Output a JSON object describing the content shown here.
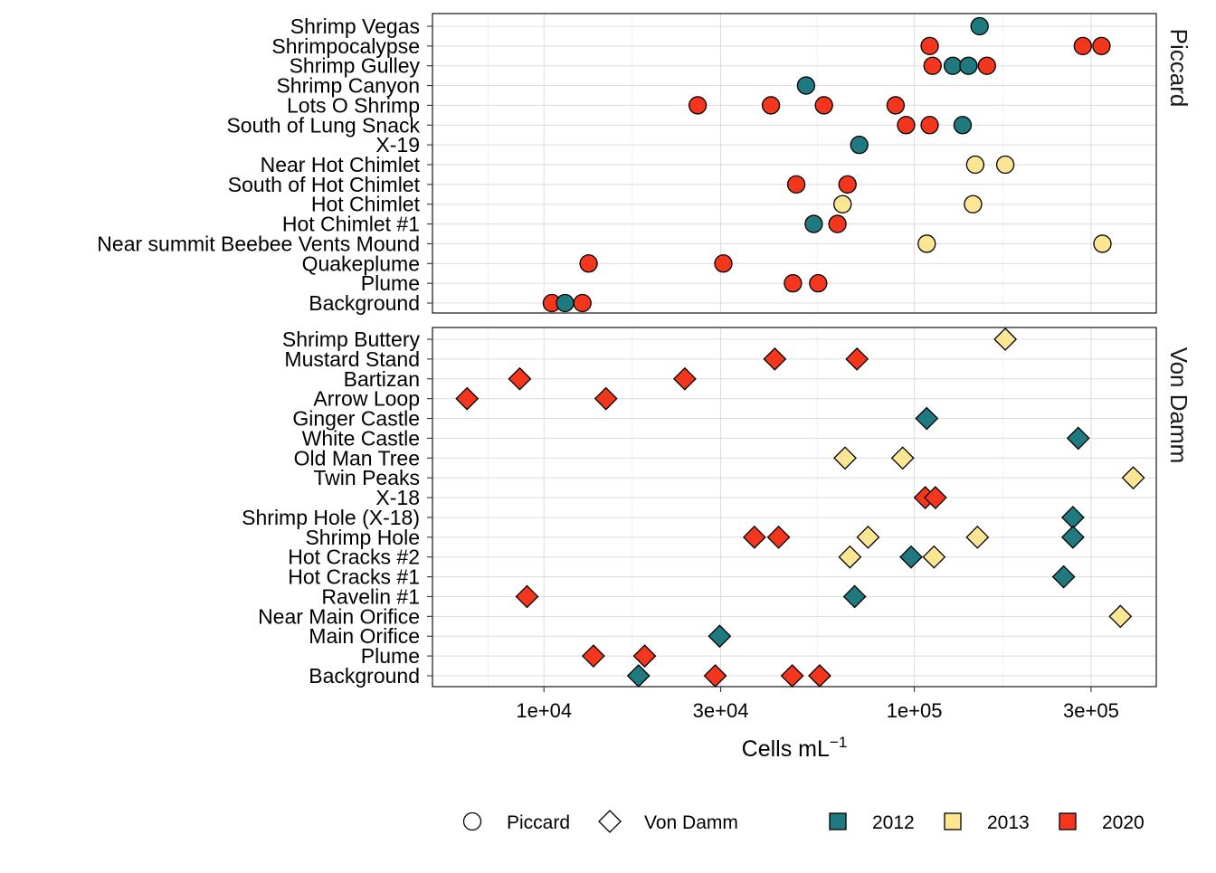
{
  "chart_data": {
    "type": "scatter",
    "x_scale": "log10",
    "xlim": [
      5000,
      450000
    ],
    "xlabel_main": "Cells  mL",
    "xlabel_sup": "−1",
    "x_ticks": [
      {
        "value": 10000,
        "label": "1e+04"
      },
      {
        "value": 30000,
        "label": "3e+04"
      },
      {
        "value": 100000,
        "label": "1e+05"
      },
      {
        "value": 300000,
        "label": "3e+05"
      }
    ],
    "grid": true,
    "legend_position": "bottom",
    "shape_legend": [
      {
        "name": "Piccard",
        "shape": "circle"
      },
      {
        "name": "Von Damm",
        "shape": "diamond"
      }
    ],
    "year_legend": [
      {
        "name": "2012",
        "color": "#1f7a80"
      },
      {
        "name": "2013",
        "color": "#fce694"
      },
      {
        "name": "2020",
        "color": "#f4361c"
      }
    ],
    "panels": [
      {
        "name": "Piccard",
        "shape": "circle",
        "sites": [
          "Shrimp Vegas",
          "Shrimpocalypse",
          "Shrimp Gulley",
          "Shrimp Canyon",
          "Lots O Shrimp",
          "South of Lung Snack",
          "X-19",
          "Near Hot Chimlet",
          "South of Hot Chimlet",
          "Hot Chimlet",
          "Hot Chimlet #1",
          "Near summit Beebee Vents Mound",
          "Quakeplume",
          "Plume",
          "Background"
        ],
        "points": [
          {
            "site": "Shrimp Vegas",
            "year": "2012",
            "value": 150000
          },
          {
            "site": "Shrimpocalypse",
            "year": "2020",
            "value": 110000
          },
          {
            "site": "Shrimpocalypse",
            "year": "2020",
            "value": 285000
          },
          {
            "site": "Shrimpocalypse",
            "year": "2020",
            "value": 320000
          },
          {
            "site": "Shrimp Gulley",
            "year": "2020",
            "value": 112000
          },
          {
            "site": "Shrimp Gulley",
            "year": "2012",
            "value": 127000
          },
          {
            "site": "Shrimp Gulley",
            "year": "2012",
            "value": 140000
          },
          {
            "site": "Shrimp Gulley",
            "year": "2020",
            "value": 157000
          },
          {
            "site": "Shrimp Canyon",
            "year": "2012",
            "value": 51000
          },
          {
            "site": "Lots O Shrimp",
            "year": "2020",
            "value": 26000
          },
          {
            "site": "Lots O Shrimp",
            "year": "2020",
            "value": 41000
          },
          {
            "site": "Lots O Shrimp",
            "year": "2020",
            "value": 57000
          },
          {
            "site": "Lots O Shrimp",
            "year": "2020",
            "value": 89000
          },
          {
            "site": "South of Lung Snack",
            "year": "2020",
            "value": 95000
          },
          {
            "site": "South of Lung Snack",
            "year": "2020",
            "value": 110000
          },
          {
            "site": "South of Lung Snack",
            "year": "2012",
            "value": 135000
          },
          {
            "site": "X-19",
            "year": "2012",
            "value": 71000
          },
          {
            "site": "Near Hot Chimlet",
            "year": "2013",
            "value": 146000
          },
          {
            "site": "Near Hot Chimlet",
            "year": "2013",
            "value": 176000
          },
          {
            "site": "South of Hot Chimlet",
            "year": "2020",
            "value": 48000
          },
          {
            "site": "South of Hot Chimlet",
            "year": "2020",
            "value": 66000
          },
          {
            "site": "Hot Chimlet",
            "year": "2013",
            "value": 64000
          },
          {
            "site": "Hot Chimlet",
            "year": "2013",
            "value": 144000
          },
          {
            "site": "Hot Chimlet #1",
            "year": "2012",
            "value": 53500
          },
          {
            "site": "Hot Chimlet #1",
            "year": "2020",
            "value": 62000
          },
          {
            "site": "Near summit Beebee Vents Mound",
            "year": "2013",
            "value": 108000
          },
          {
            "site": "Near summit Beebee Vents Mound",
            "year": "2013",
            "value": 322000
          },
          {
            "site": "Quakeplume",
            "year": "2020",
            "value": 13200
          },
          {
            "site": "Quakeplume",
            "year": "2020",
            "value": 30500
          },
          {
            "site": "Plume",
            "year": "2020",
            "value": 47000
          },
          {
            "site": "Plume",
            "year": "2020",
            "value": 55000
          },
          {
            "site": "Background",
            "year": "2020",
            "value": 10500
          },
          {
            "site": "Background",
            "year": "2012",
            "value": 11400
          },
          {
            "site": "Background",
            "year": "2020",
            "value": 12700
          }
        ]
      },
      {
        "name": "Von Damm",
        "shape": "diamond",
        "sites": [
          "Shrimp Buttery",
          "Mustard Stand",
          "Bartizan",
          "Arrow Loop",
          "Ginger Castle",
          "White Castle",
          "Old Man Tree",
          "Twin Peaks",
          "X-18",
          "Shrimp Hole (X-18)",
          "Shrimp Hole",
          "Hot Cracks #2",
          "Hot Cracks #1",
          "Ravelin #1",
          "Near Main Orifice",
          "Main Orifice",
          "Plume",
          "Background"
        ],
        "points": [
          {
            "site": "Shrimp Buttery",
            "year": "2013",
            "value": 176000
          },
          {
            "site": "Mustard Stand",
            "year": "2020",
            "value": 42000
          },
          {
            "site": "Mustard Stand",
            "year": "2020",
            "value": 70000
          },
          {
            "site": "Bartizan",
            "year": "2020",
            "value": 8600
          },
          {
            "site": "Bartizan",
            "year": "2020",
            "value": 24000
          },
          {
            "site": "Arrow Loop",
            "year": "2020",
            "value": 6200
          },
          {
            "site": "Arrow Loop",
            "year": "2020",
            "value": 14700
          },
          {
            "site": "Ginger Castle",
            "year": "2012",
            "value": 108000
          },
          {
            "site": "White Castle",
            "year": "2012",
            "value": 277000
          },
          {
            "site": "Old Man Tree",
            "year": "2013",
            "value": 65000
          },
          {
            "site": "Old Man Tree",
            "year": "2013",
            "value": 93000
          },
          {
            "site": "Twin Peaks",
            "year": "2013",
            "value": 390000
          },
          {
            "site": "X-18",
            "year": "2020",
            "value": 107000
          },
          {
            "site": "X-18",
            "year": "2020",
            "value": 114000
          },
          {
            "site": "Shrimp Hole (X-18)",
            "year": "2012",
            "value": 268000
          },
          {
            "site": "Shrimp Hole",
            "year": "2020",
            "value": 37000
          },
          {
            "site": "Shrimp Hole",
            "year": "2020",
            "value": 43000
          },
          {
            "site": "Shrimp Hole",
            "year": "2013",
            "value": 75000
          },
          {
            "site": "Shrimp Hole",
            "year": "2013",
            "value": 148000
          },
          {
            "site": "Shrimp Hole",
            "year": "2012",
            "value": 268000
          },
          {
            "site": "Hot Cracks #2",
            "year": "2013",
            "value": 67000
          },
          {
            "site": "Hot Cracks #2",
            "year": "2012",
            "value": 98000
          },
          {
            "site": "Hot Cracks #2",
            "year": "2013",
            "value": 113000
          },
          {
            "site": "Hot Cracks #1",
            "year": "2012",
            "value": 253000
          },
          {
            "site": "Ravelin #1",
            "year": "2012",
            "value": 69000
          },
          {
            "site": "Ravelin #1",
            "year": "2020",
            "value": 9000
          },
          {
            "site": "Near Main Orifice",
            "year": "2013",
            "value": 360000
          },
          {
            "site": "Main Orifice",
            "year": "2012",
            "value": 29800
          },
          {
            "site": "Plume",
            "year": "2020",
            "value": 13600
          },
          {
            "site": "Plume",
            "year": "2020",
            "value": 18700
          },
          {
            "site": "Background",
            "year": "2012",
            "value": 18000
          },
          {
            "site": "Background",
            "year": "2020",
            "value": 29000
          },
          {
            "site": "Background",
            "year": "2020",
            "value": 46800
          },
          {
            "site": "Background",
            "year": "2020",
            "value": 55500
          }
        ]
      }
    ]
  }
}
